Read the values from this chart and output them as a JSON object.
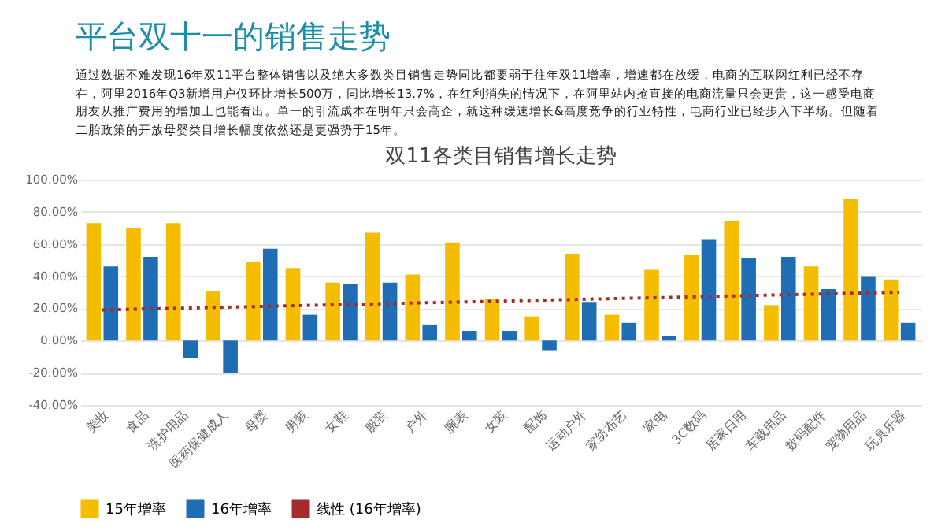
{
  "chart_data": {
    "type": "bar",
    "title": "平台双十一的销售走势",
    "annotations": [
      "通过数据不难发现16年双11平台整体销售以及绝大多数类目销售走势同比都要弱于往年双11增率，增速都在放缓，电商的互联网红利已经不存在，阿里2016年Q3新增用户仅环比增长500万，同比增长13.7%，在红利消失的情况下，在阿里站内抢直接的电商流量只会更贵，这一感受电商朋友从推广费用的增加上也能看出。单一的引流成本在明年只会高企，就这种缓速增长&高度竞争的行业特性，电商行业已经步入下半场。但随着二胎政策的开放母婴类目增长幅度依然还是更强势于15年。"
    ],
    "subtitle": "双11各类目销售增长走势",
    "categories": [
      "美妆",
      "食品",
      "洗护用品",
      "医药保健成人",
      "母婴",
      "男装",
      "女鞋",
      "服装",
      "户外",
      "腕表",
      "女装",
      "配饰",
      "运动户外",
      "家纺布艺",
      "家电",
      "3C数码",
      "居家日用",
      "车载用品",
      "数码配件",
      "宠物用品",
      "玩具乐器"
    ],
    "series": [
      {
        "name": "15年增率",
        "color": "#f5bd00",
        "values": [
          73,
          70,
          73,
          31,
          49,
          45,
          36,
          67,
          41,
          61,
          26,
          15,
          54,
          16,
          44,
          53,
          74,
          22,
          46,
          88,
          38
        ]
      },
      {
        "name": "16年增率",
        "color": "#1f6db5",
        "values": [
          46,
          52,
          -11,
          -20,
          57,
          16,
          35,
          36,
          10,
          6,
          6,
          -6,
          24,
          11,
          3,
          63,
          51,
          52,
          32,
          40,
          11
        ]
      },
      {
        "name": "线性 (16年增率)",
        "type": "line",
        "color": "#a52a2a",
        "line_style": "dotted",
        "x": [
          "美妆",
          "玩具乐器"
        ],
        "values": [
          19,
          30
        ]
      }
    ],
    "ylim": [
      -40,
      100
    ],
    "yticks": [
      {
        "value": -40,
        "label": "-40.00%"
      },
      {
        "value": -20,
        "label": "-20.00%"
      },
      {
        "value": 0,
        "label": "0.00%"
      },
      {
        "value": 20,
        "label": "20.00%"
      },
      {
        "value": 40,
        "label": "40.00%"
      },
      {
        "value": 60,
        "label": "60.00%"
      },
      {
        "value": 80,
        "label": "80.00%"
      },
      {
        "value": 100,
        "label": "100.00%"
      }
    ],
    "grid": "y",
    "legend": "bottom"
  }
}
